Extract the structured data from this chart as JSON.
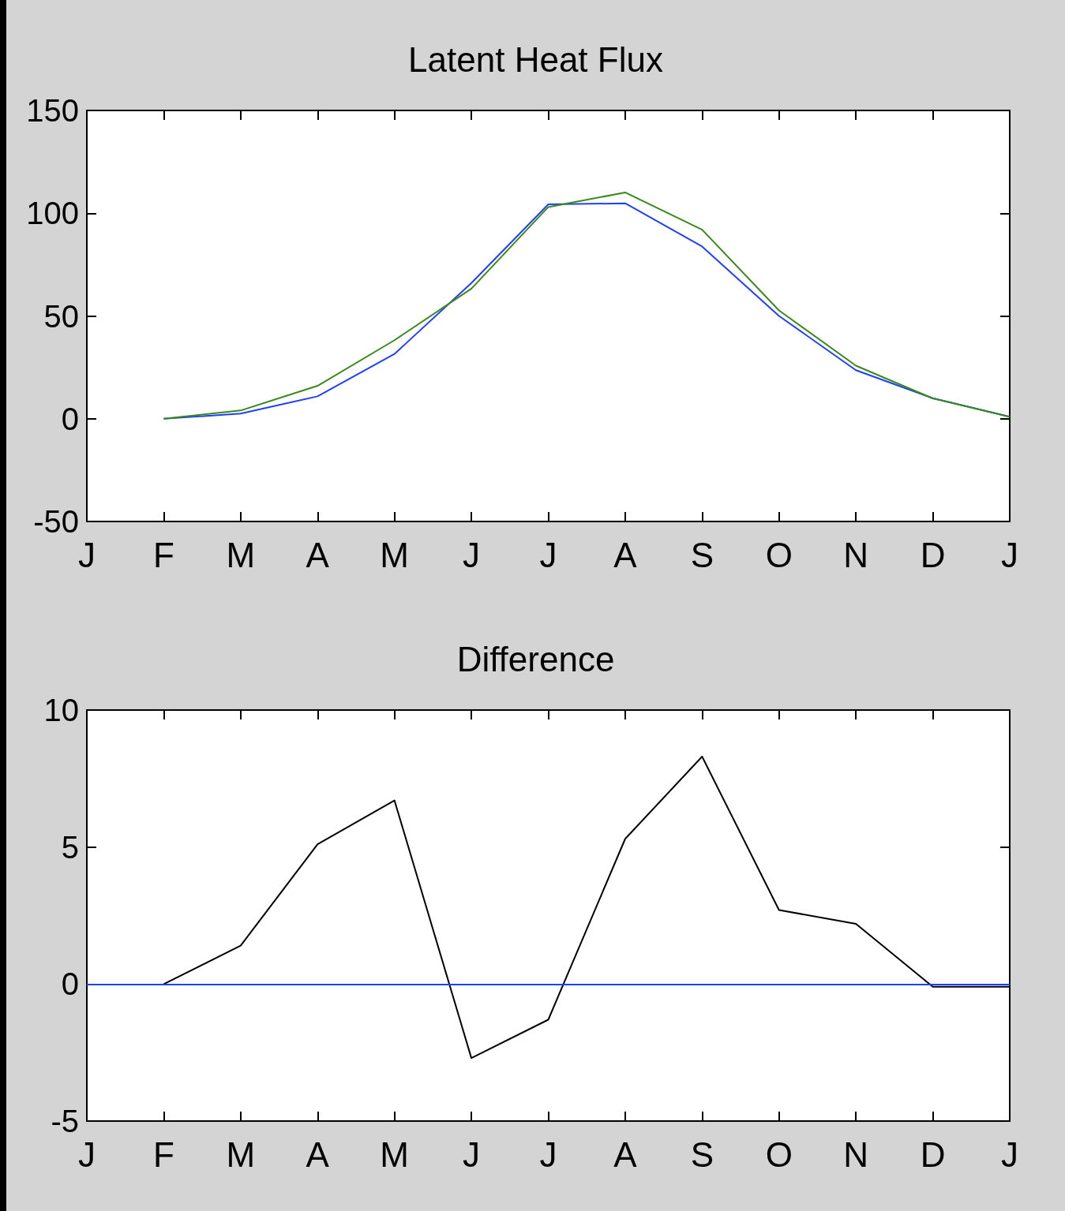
{
  "chart_data": [
    {
      "type": "line",
      "title": "Latent Heat Flux",
      "categories": [
        "J",
        "F",
        "M",
        "A",
        "M",
        "J",
        "J",
        "A",
        "S",
        "O",
        "N",
        "D",
        "J"
      ],
      "series": [
        {
          "color": "#1f3fff",
          "values": [
            null,
            0,
            2.5,
            10.9,
            31.5,
            66,
            104.3,
            104.8,
            83.8,
            50,
            23.6,
            10,
            1
          ]
        },
        {
          "color": "#3a8a1a",
          "values": [
            null,
            0,
            4,
            16,
            38.2,
            63.3,
            103,
            110.1,
            92,
            52.7,
            25.8,
            9.9,
            0.9
          ]
        }
      ],
      "ylim": [
        -50,
        150
      ],
      "yticks": [
        -50,
        0,
        50,
        100,
        150
      ],
      "grid": false,
      "marker": "none",
      "line_style": "solid"
    },
    {
      "type": "line",
      "title": "Difference",
      "categories": [
        "J",
        "F",
        "M",
        "A",
        "M",
        "J",
        "J",
        "A",
        "S",
        "O",
        "N",
        "D",
        "J"
      ],
      "series": [
        {
          "color": "#000000",
          "values": [
            null,
            0,
            1.4,
            5.1,
            6.7,
            -2.7,
            -1.3,
            5.3,
            8.3,
            2.7,
            2.2,
            -0.1,
            -0.1
          ]
        }
      ],
      "ref_lines": [
        {
          "axis": "y",
          "value": 0,
          "color": "#1f3fff"
        }
      ],
      "ylim": [
        -5,
        10
      ],
      "yticks": [
        -5,
        0,
        5,
        10
      ],
      "grid": false,
      "marker": "none",
      "line_style": "solid"
    }
  ]
}
